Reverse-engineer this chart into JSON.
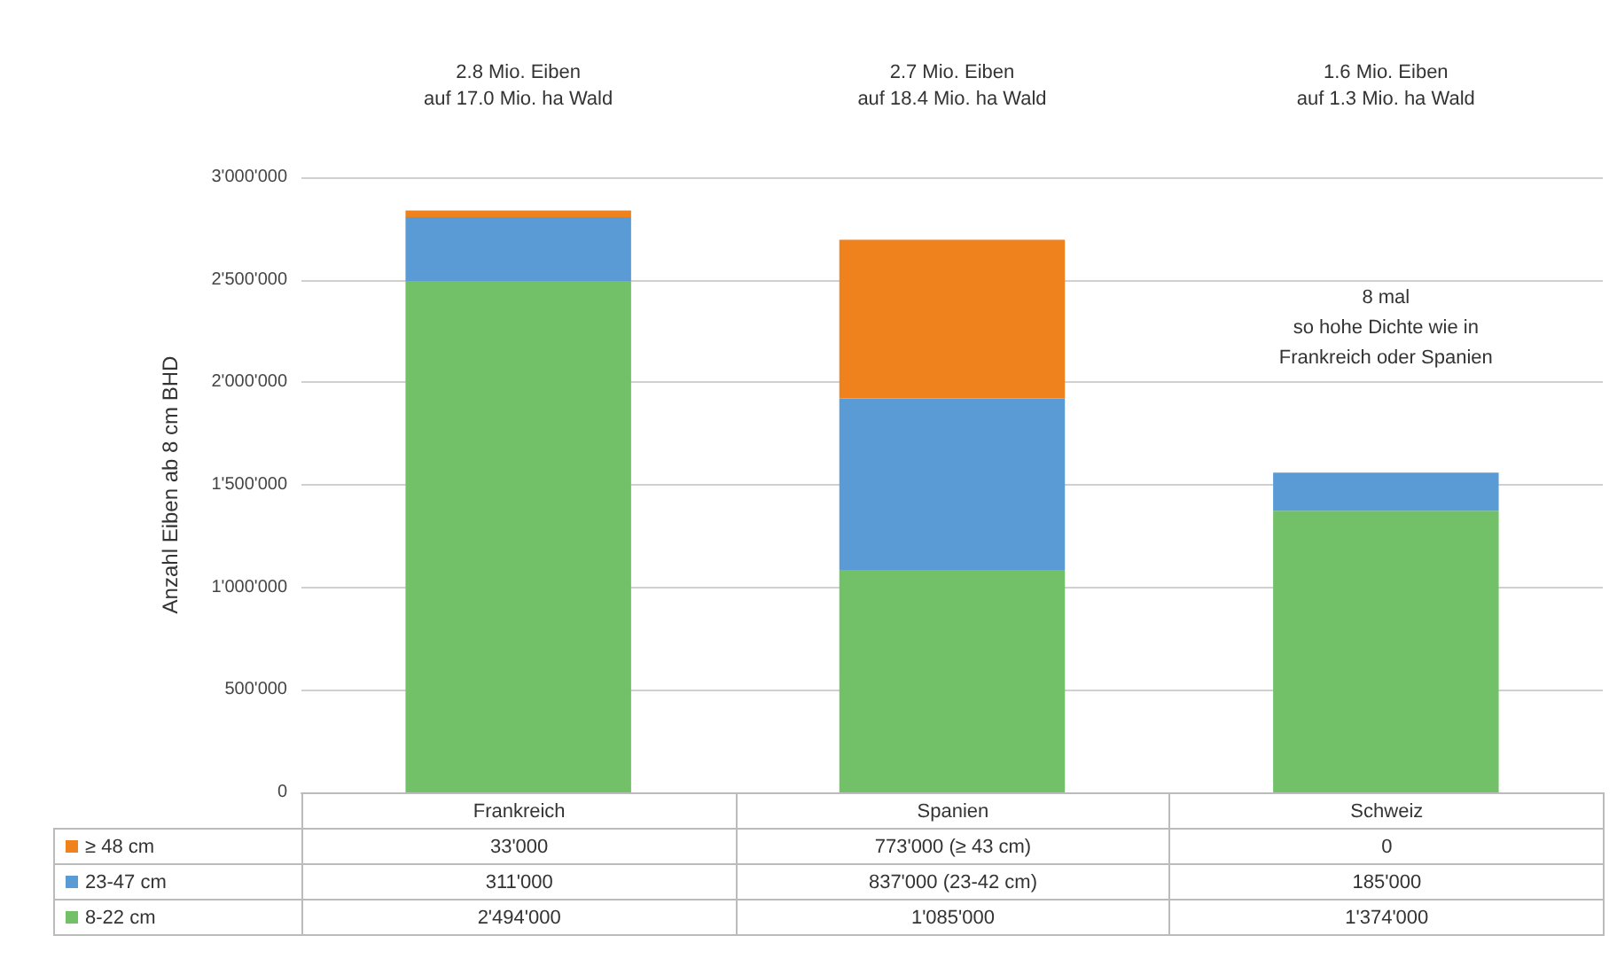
{
  "chart_data": {
    "type": "bar",
    "stacked": true,
    "ylabel": "Anzahl Eiben ab 8 cm BHD",
    "categories": [
      "Frankreich",
      "Spanien",
      "Schweiz"
    ],
    "series": [
      {
        "name": "8-22 cm",
        "color": "#72c168",
        "values": [
          2494000,
          1085000,
          1374000
        ],
        "value_labels": [
          "2'494'000",
          "1'085'000",
          "1'374'000"
        ]
      },
      {
        "name": "23-47 cm",
        "color": "#5b9bd5",
        "values": [
          311000,
          837000,
          185000
        ],
        "value_labels": [
          "311'000",
          "837'000 (23-42 cm)",
          "185'000"
        ]
      },
      {
        "name": "≥ 48 cm",
        "color": "#f0821e",
        "values": [
          33000,
          773000,
          0
        ],
        "value_labels": [
          "33'000",
          "773'000 (≥ 43 cm)",
          "0"
        ]
      }
    ],
    "ylim": [
      0,
      3000000
    ],
    "yticks": [
      {
        "value": 0,
        "label": "0"
      },
      {
        "value": 500000,
        "label": "500'000"
      },
      {
        "value": 1000000,
        "label": "1'000'000"
      },
      {
        "value": 1500000,
        "label": "1'500'000"
      },
      {
        "value": 2000000,
        "label": "2'000'000"
      },
      {
        "value": 2500000,
        "label": "2'500'000"
      },
      {
        "value": 3000000,
        "label": "3'000'000"
      }
    ],
    "grid": "y",
    "legend": "bottom left",
    "annotations": [
      "2.8 Mio. Eiben\nauf 17.0 Mio. ha Wald",
      "2.7 Mio. Eiben\nauf 18.4 Mio. ha Wald",
      "1.6 Mio. Eiben\nauf 1.3 Mio. ha Wald",
      "8 mal\nso hohe Dichte wie in\nFrankreich oder Spanien"
    ]
  }
}
